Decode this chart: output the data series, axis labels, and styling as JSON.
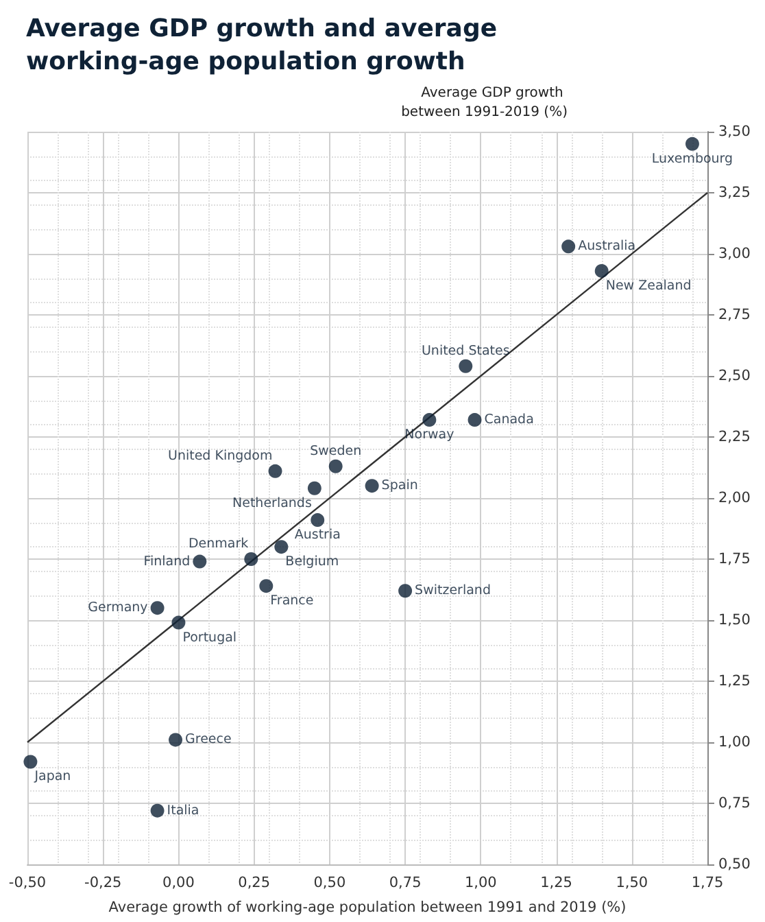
{
  "chart_data": {
    "type": "scatter",
    "title": "Average GDP growth and average working-age population growth",
    "xlabel": "Average growth of working-age population between 1991 and 2019 (%)",
    "ylabel": "Average GDP growth between 1991-2019 (%)",
    "xlim": [
      -0.5,
      1.75
    ],
    "ylim": [
      0.5,
      3.5
    ],
    "xticks": [
      {
        "value": -0.5,
        "label": "-0,50"
      },
      {
        "value": -0.25,
        "label": "-0,25"
      },
      {
        "value": 0,
        "label": "0,00"
      },
      {
        "value": 0.25,
        "label": "0,25"
      },
      {
        "value": 0.5,
        "label": "0,50"
      },
      {
        "value": 0.75,
        "label": "0,75"
      },
      {
        "value": 1,
        "label": "1,00"
      },
      {
        "value": 1.25,
        "label": "1,25"
      },
      {
        "value": 1.5,
        "label": "1,50"
      },
      {
        "value": 1.75,
        "label": "1,75"
      }
    ],
    "yticks": [
      {
        "value": 0.5,
        "label": "0,50"
      },
      {
        "value": 0.75,
        "label": "0,75"
      },
      {
        "value": 1,
        "label": "1,00"
      },
      {
        "value": 1.25,
        "label": "1,25"
      },
      {
        "value": 1.5,
        "label": "1,50"
      },
      {
        "value": 1.75,
        "label": "1,75"
      },
      {
        "value": 2,
        "label": "2,00"
      },
      {
        "value": 2.25,
        "label": "2,25"
      },
      {
        "value": 2.5,
        "label": "2,50"
      },
      {
        "value": 2.75,
        "label": "2,75"
      },
      {
        "value": 3,
        "label": "3,00"
      },
      {
        "value": 3.25,
        "label": "3,25"
      },
      {
        "value": 3.5,
        "label": "3,50"
      }
    ],
    "grid": true,
    "marker": "circle",
    "series": [
      {
        "type": "scatter",
        "color": "#0f2236",
        "x": [
          1.7,
          1.29,
          1.4,
          0.95,
          0.98,
          0.83,
          0.52,
          0.32,
          0.64,
          0.45,
          0.46,
          0.24,
          0.34,
          0.07,
          0.29,
          0.75,
          -0.07,
          0.0,
          -0.01,
          -0.49,
          -0.07
        ],
        "values": [
          3.45,
          3.03,
          2.93,
          2.54,
          2.32,
          2.32,
          2.13,
          2.11,
          2.05,
          2.04,
          1.91,
          1.75,
          1.8,
          1.74,
          1.64,
          1.62,
          1.55,
          1.49,
          1.01,
          0.92,
          0.72
        ]
      },
      {
        "type": "line",
        "color": "#333333",
        "x": [
          -0.5,
          1.75
        ],
        "values": [
          1.0,
          3.25
        ],
        "marker": "none",
        "line_style": "solid"
      }
    ],
    "annotations": [
      {
        "text": "Luxembourg",
        "x": 1.7,
        "y": 3.45
      },
      {
        "text": "Australia",
        "x": 1.29,
        "y": 3.03
      },
      {
        "text": "New Zealand",
        "x": 1.4,
        "y": 2.93
      },
      {
        "text": "United States",
        "x": 0.95,
        "y": 2.54
      },
      {
        "text": "Canada",
        "x": 0.98,
        "y": 2.32
      },
      {
        "text": "Norway",
        "x": 0.83,
        "y": 2.32
      },
      {
        "text": "Sweden",
        "x": 0.52,
        "y": 2.13
      },
      {
        "text": "United Kingdom",
        "x": 0.32,
        "y": 2.11
      },
      {
        "text": "Spain",
        "x": 0.64,
        "y": 2.05
      },
      {
        "text": "Netherlands",
        "x": 0.45,
        "y": 2.04
      },
      {
        "text": "Austria",
        "x": 0.46,
        "y": 1.91
      },
      {
        "text": "Denmark",
        "x": 0.24,
        "y": 1.75
      },
      {
        "text": "Belgium",
        "x": 0.34,
        "y": 1.8
      },
      {
        "text": "Finland",
        "x": 0.07,
        "y": 1.74
      },
      {
        "text": "France",
        "x": 0.29,
        "y": 1.64
      },
      {
        "text": "Switzerland",
        "x": 0.75,
        "y": 1.62
      },
      {
        "text": "Germany",
        "x": -0.07,
        "y": 1.55
      },
      {
        "text": "Portugal",
        "x": 0.0,
        "y": 1.49
      },
      {
        "text": "Greece",
        "x": -0.01,
        "y": 1.01
      },
      {
        "text": "Japan",
        "x": -0.49,
        "y": 0.92
      },
      {
        "text": "Italia",
        "x": -0.07,
        "y": 0.72
      }
    ]
  }
}
